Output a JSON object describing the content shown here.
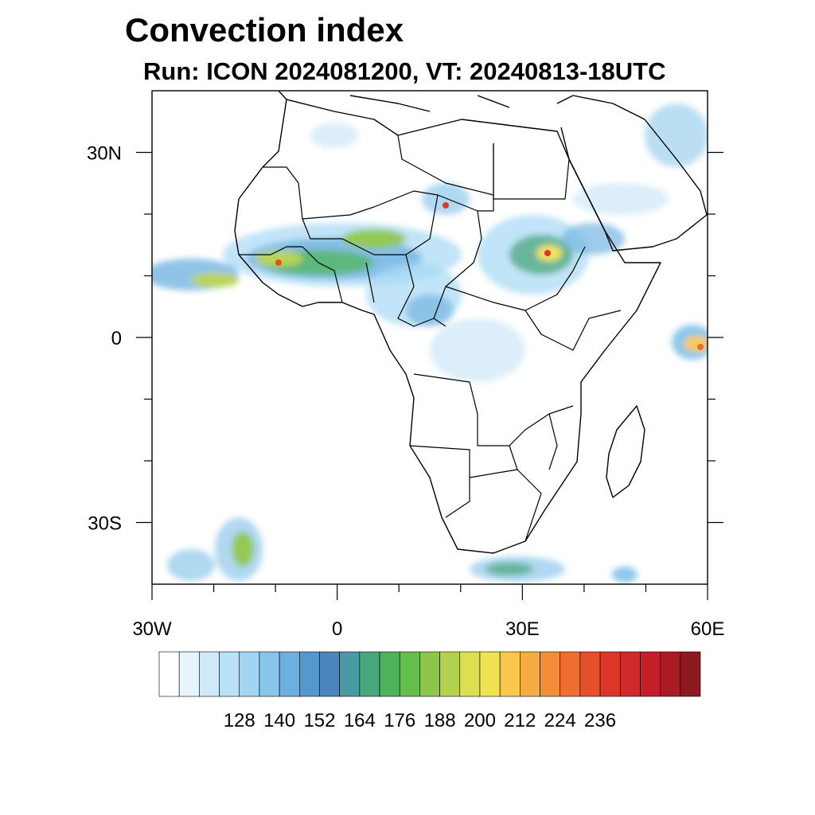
{
  "header": {
    "title": "Convection index",
    "subtitle": "Run: ICON 2024081200,  VT: 20240813-18UTC"
  },
  "map": {
    "region": "Africa",
    "lon_range": [
      -30,
      60
    ],
    "lat_range": [
      -40,
      40
    ],
    "lat_ticks": [
      {
        "value": 30,
        "label": "30N"
      },
      {
        "value": 0,
        "label": "0"
      },
      {
        "value": -30,
        "label": "30S"
      }
    ],
    "lon_ticks": [
      {
        "value": -30,
        "label": "30W"
      },
      {
        "value": 0,
        "label": "0"
      },
      {
        "value": 30,
        "label": "30E"
      },
      {
        "value": 60,
        "label": "60E"
      }
    ]
  },
  "colorbar": {
    "colors": [
      "#ffffff",
      "#e6f4fc",
      "#cfe9f8",
      "#b8e0f7",
      "#a1d6f3",
      "#87c5ea",
      "#6db0e0",
      "#5597cf",
      "#4a86bb",
      "#4a9aa6",
      "#4aa67d",
      "#4cb35a",
      "#64be4c",
      "#8ec64c",
      "#b5d24e",
      "#dbe04f",
      "#f1e254",
      "#f8c84d",
      "#f6ac43",
      "#f38d39",
      "#ef6d31",
      "#e5502b",
      "#dd3729",
      "#d1282b",
      "#c21f2a",
      "#aa1b25",
      "#8c1820"
    ],
    "labels": [
      "128",
      "140",
      "152",
      "164",
      "176",
      "188",
      "200",
      "212",
      "224",
      "236"
    ]
  }
}
